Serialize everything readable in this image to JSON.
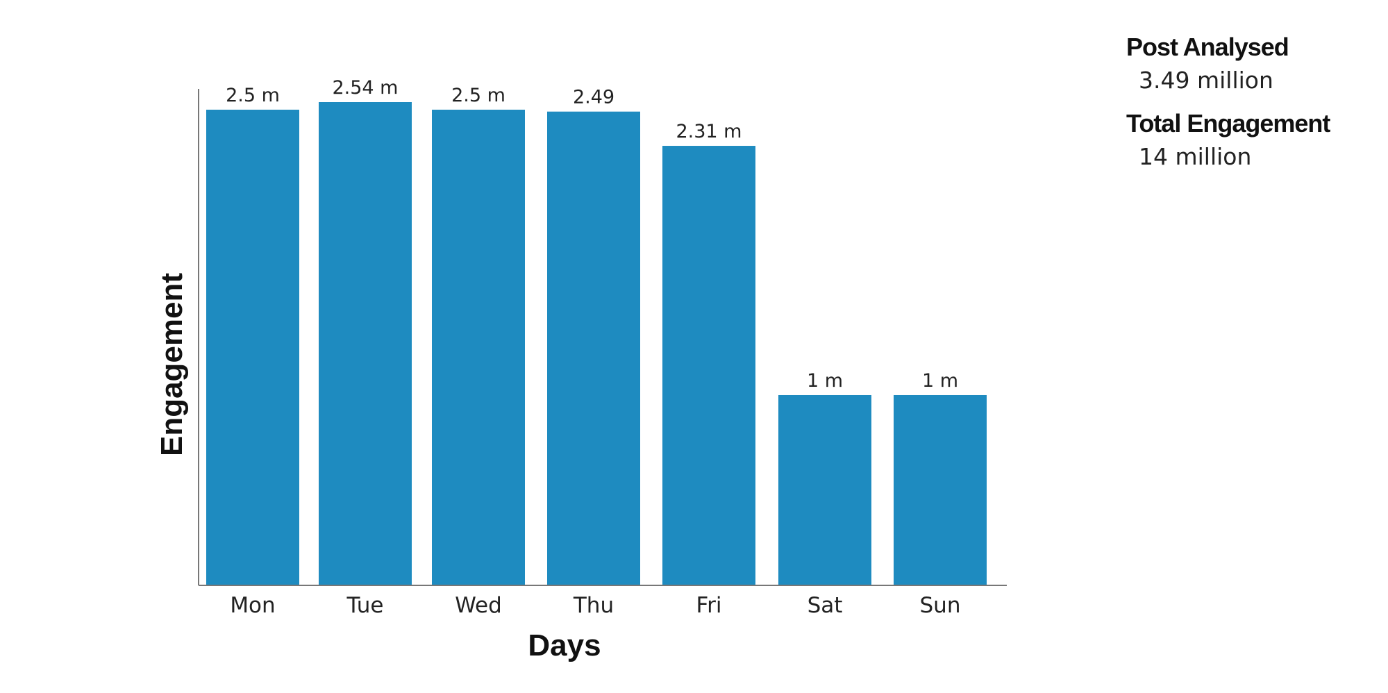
{
  "chart_data": {
    "type": "bar",
    "categories": [
      "Mon",
      "Tue",
      "Wed",
      "Thu",
      "Fri",
      "Sat",
      "Sun"
    ],
    "values": [
      2.5,
      2.54,
      2.5,
      2.49,
      2.31,
      1,
      1
    ],
    "data_labels": [
      "2.5 m",
      "2.54 m",
      "2.5 m",
      "2.49",
      "2.31 m",
      "1 m",
      "1 m"
    ],
    "xlabel": "Days",
    "ylabel": "Engagement",
    "bar_color": "#1E8BC0",
    "grid": false,
    "unit": "m"
  },
  "summary": {
    "posts_label": "Post Analysed",
    "posts_value": "3.49 million",
    "engagement_label": "Total Engagement",
    "engagement_value": "14 million"
  }
}
